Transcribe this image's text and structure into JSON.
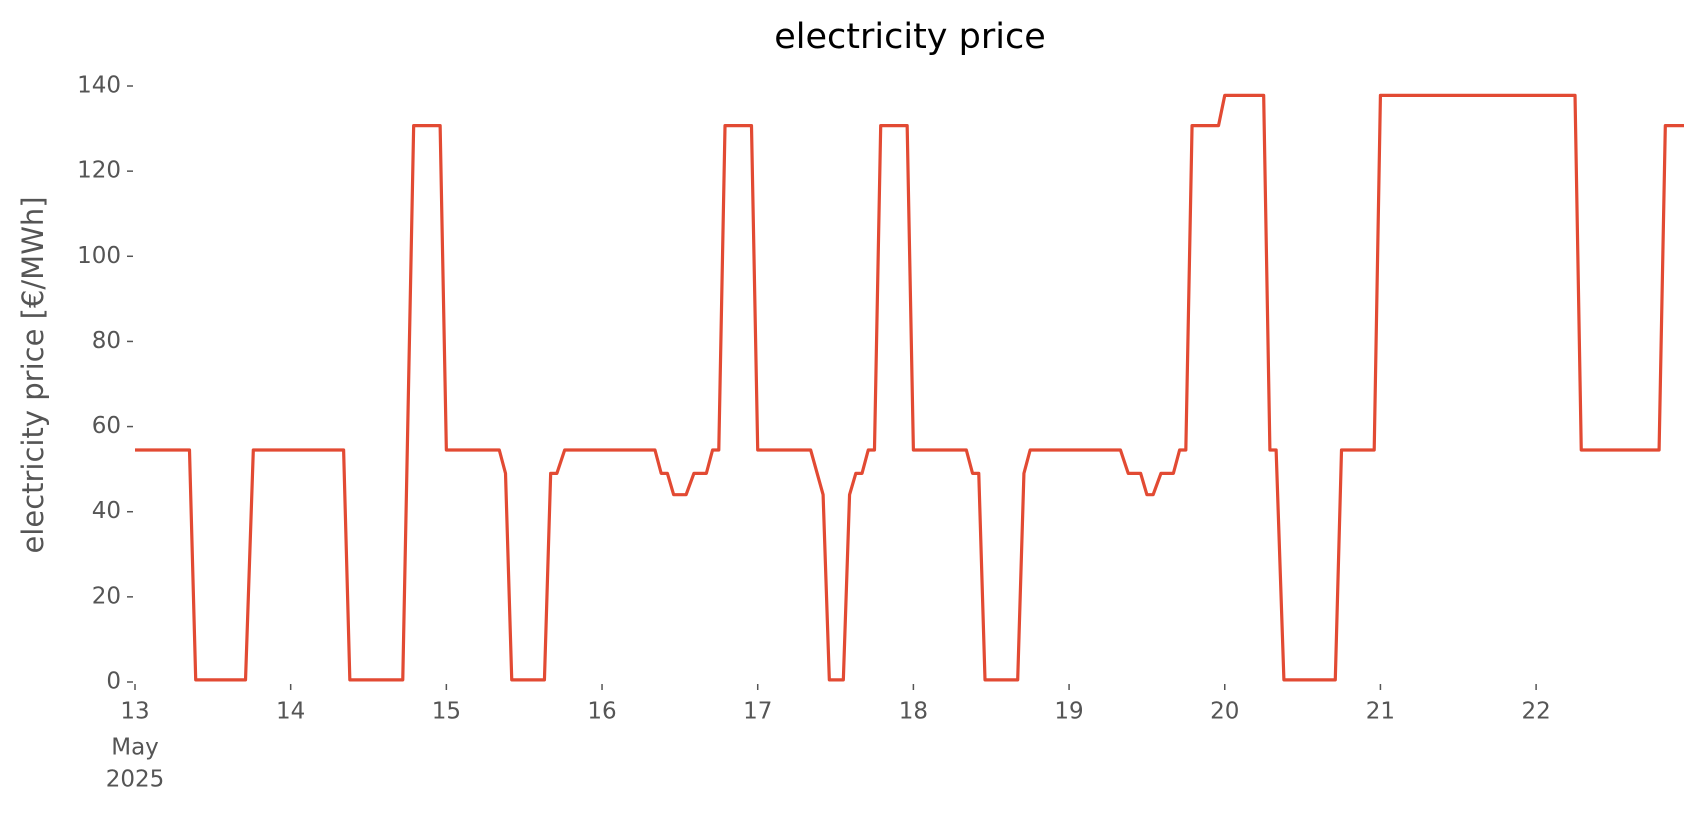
{
  "chart_data": {
    "type": "line",
    "title": "electricity price",
    "ylabel": "electricity price [€/MWh]",
    "x": [
      13.0,
      13.35,
      13.39,
      13.71,
      13.76,
      14.34,
      14.38,
      14.72,
      14.79,
      14.96,
      15.0,
      15.34,
      15.38,
      15.42,
      15.63,
      15.67,
      15.71,
      15.76,
      16.34,
      16.38,
      16.42,
      16.46,
      16.54,
      16.59,
      16.67,
      16.71,
      16.75,
      16.79,
      16.96,
      17.0,
      17.34,
      17.42,
      17.46,
      17.55,
      17.59,
      17.63,
      17.67,
      17.71,
      17.75,
      17.79,
      17.96,
      18.0,
      18.34,
      18.38,
      18.42,
      18.46,
      18.67,
      18.71,
      18.75,
      19.33,
      19.38,
      19.46,
      19.5,
      19.54,
      19.59,
      19.67,
      19.71,
      19.75,
      19.79,
      19.96,
      20.0,
      20.25,
      20.29,
      20.33,
      20.38,
      20.71,
      20.75,
      20.96,
      21.0,
      22.25,
      22.29,
      22.79,
      22.83,
      22.95
    ],
    "series": [
      {
        "color": "#e24a33",
        "values": [
          54.5,
          54.5,
          0.5,
          0.5,
          54.5,
          54.5,
          0.5,
          0.5,
          130.7,
          130.7,
          54.5,
          54.5,
          49,
          0.5,
          0.5,
          49,
          49,
          54.5,
          54.5,
          49,
          49,
          44,
          44,
          49,
          49,
          54.5,
          54.5,
          130.7,
          130.7,
          54.5,
          54.5,
          44,
          0.5,
          0.5,
          44,
          49,
          49,
          54.5,
          54.5,
          130.7,
          130.7,
          54.5,
          54.5,
          49,
          49,
          0.5,
          0.5,
          49,
          54.5,
          54.5,
          49,
          49,
          44,
          44,
          49,
          49,
          54.5,
          54.5,
          130.7,
          130.7,
          137.8,
          137.8,
          54.5,
          54.5,
          0.5,
          0.5,
          54.5,
          54.5,
          137.8,
          137.8,
          54.5,
          54.5,
          130.7,
          130.7
        ]
      }
    ],
    "xlim": [
      13,
      22.95
    ],
    "xticks": [
      13,
      14,
      15,
      16,
      17,
      18,
      19,
      20,
      21,
      22
    ],
    "xtick_sublabels": [
      "May",
      "2025"
    ],
    "ylim": [
      0,
      140
    ],
    "yticks": [
      0,
      20,
      40,
      60,
      80,
      100,
      120,
      140
    ]
  }
}
